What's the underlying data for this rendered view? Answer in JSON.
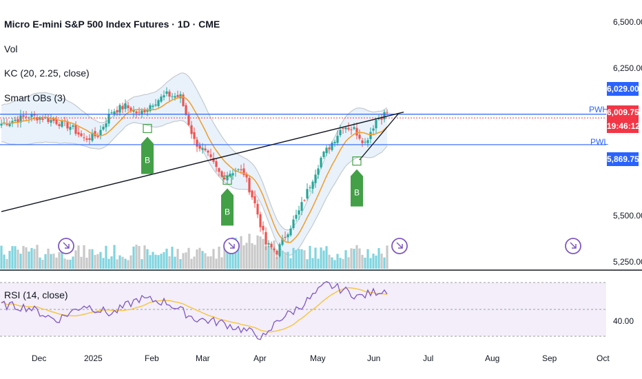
{
  "header": {
    "title": "Micro E-mini S&P 500 Index Futures · 1D · CME",
    "vol_label": "Vol",
    "kc_label": "KC (20, 2.25, close)",
    "smart_label": "Smart OBs (3)",
    "rsi_label": "RSI (14, close)"
  },
  "price_axis": [
    "6,500.00",
    "6,250.00",
    "5,500.00",
    "5,250.00"
  ],
  "rsi_axis": [
    "40.00"
  ],
  "time_axis": [
    "Dec",
    "2025",
    "Feb",
    "Mar",
    "Apr",
    "May",
    "Jun",
    "Jul",
    "Aug",
    "Sep",
    "Oct"
  ],
  "price_tags": {
    "pwh_value": "6,029.00",
    "last_value": "6,009.75",
    "countdown": "19:46:12",
    "pwl_value": "5,869.75"
  },
  "levels": {
    "pwh_label": "PWH",
    "pwl_label": "PWL"
  },
  "signals": [
    {
      "label": "B",
      "date_index": 53,
      "price": 5940
    },
    {
      "label": "B",
      "date_index": 82,
      "price": 5670
    },
    {
      "label": "B",
      "date_index": 129,
      "price": 5770
    }
  ],
  "colors": {
    "up": "#26a69a",
    "up_vol": "#7fd4df",
    "down": "#ef5350",
    "down_vol": "#c8c8c8",
    "kc_mid": "#f0a030",
    "kc_band": "#c7ccd1",
    "kc_fill": "#e9f2fb",
    "level": "#2962ff",
    "rsi_line": "#7e57c2",
    "rsi_ma": "#f6c744",
    "rsi_bg": "#f3eefa",
    "signal": "#43a047",
    "tag_red": "#f23645",
    "tag_blue": "#2962ff"
  },
  "chart_data": {
    "type": "candlestick",
    "symbol": "Micro E-mini S&P 500 Index Futures",
    "interval": "1D",
    "exchange": "CME",
    "ylim": [
      5250,
      6500
    ],
    "levels": {
      "PWH": 6029.0,
      "PWL": 5869.75,
      "last": 6009.75
    },
    "control_points": {
      "date_index": [
        0,
        10,
        15,
        20,
        25,
        30,
        35,
        40,
        45,
        50,
        55,
        60,
        65,
        70,
        75,
        80,
        85,
        88,
        92,
        96,
        100,
        104,
        108,
        112,
        116,
        120,
        124,
        128,
        132,
        136,
        140
      ],
      "close": [
        5980,
        6020,
        6010,
        5990,
        5965,
        5900,
        5920,
        6045,
        6070,
        6030,
        6090,
        6130,
        6120,
        5890,
        5810,
        5700,
        5740,
        5720,
        5560,
        5350,
        5310,
        5420,
        5520,
        5660,
        5800,
        5880,
        5970,
        5950,
        5880,
        6000,
        6040
      ]
    },
    "trendline": {
      "from": {
        "date_index": 0,
        "price": 5520
      },
      "to": {
        "date_index": 146,
        "price": 6040
      }
    },
    "rsi": {
      "control_points": {
        "date_index": [
          0,
          10,
          20,
          30,
          40,
          50,
          60,
          70,
          80,
          90,
          96,
          100,
          106,
          112,
          118,
          124,
          130,
          136,
          140
        ],
        "value": [
          55,
          52,
          38,
          55,
          45,
          62,
          58,
          40,
          35,
          25,
          18,
          38,
          48,
          62,
          78,
          72,
          64,
          70,
          72
        ]
      },
      "level": 40
    }
  }
}
